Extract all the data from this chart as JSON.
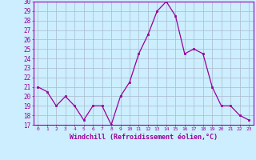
{
  "x": [
    0,
    1,
    2,
    3,
    4,
    5,
    6,
    7,
    8,
    9,
    10,
    11,
    12,
    13,
    14,
    15,
    16,
    17,
    18,
    19,
    20,
    21,
    22,
    23
  ],
  "y": [
    21,
    20.5,
    19,
    20,
    19,
    17.5,
    19,
    19,
    17,
    20,
    21.5,
    24.5,
    26.5,
    29,
    30,
    28.5,
    24.5,
    25,
    24.5,
    21,
    19,
    19,
    18,
    17.5
  ],
  "line_color": "#990099",
  "marker": "s",
  "markersize": 2.0,
  "linewidth": 0.9,
  "xlabel": "Windchill (Refroidissement éolien,°C)",
  "xlabel_fontsize": 6.0,
  "xlim": [
    -0.5,
    23.5
  ],
  "ylim": [
    17,
    30
  ],
  "yticks": [
    17,
    18,
    19,
    20,
    21,
    22,
    23,
    24,
    25,
    26,
    27,
    28,
    29,
    30
  ],
  "xticks": [
    0,
    1,
    2,
    3,
    4,
    5,
    6,
    7,
    8,
    9,
    10,
    11,
    12,
    13,
    14,
    15,
    16,
    17,
    18,
    19,
    20,
    21,
    22,
    23
  ],
  "xtick_fontsize": 4.5,
  "ytick_fontsize": 5.5,
  "background_color": "#cceeff",
  "grid_color": "#aabbcc",
  "tick_color": "#990099",
  "spine_color": "#9900aa"
}
